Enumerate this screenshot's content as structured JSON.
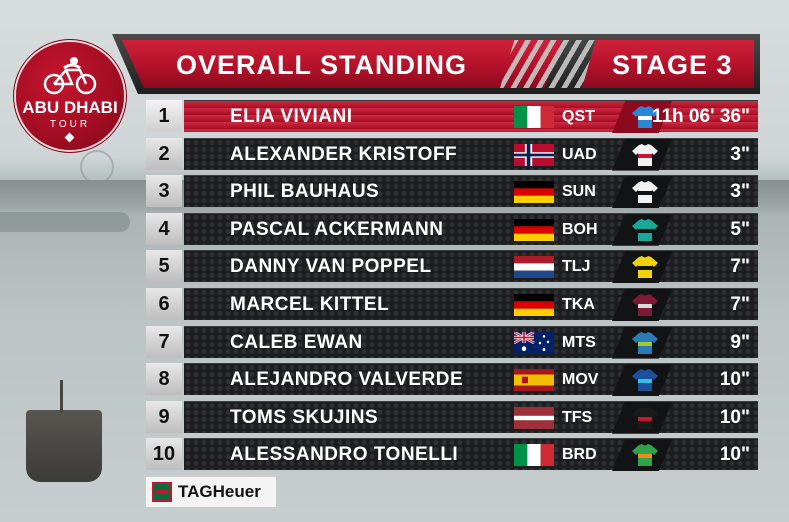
{
  "logo": {
    "line1": "ABU DHABI",
    "line2": "TOUR"
  },
  "header": {
    "title": "OVERALL STANDING",
    "stage": "STAGE 3"
  },
  "standings": [
    {
      "pos": "1",
      "name": "ELIA VIVIANI",
      "flag": "italy",
      "team": "QST",
      "jersey": "blue-white",
      "time": "11h 06' 36\""
    },
    {
      "pos": "2",
      "name": "ALEXANDER KRISTOFF",
      "flag": "norway",
      "team": "UAD",
      "jersey": "white-red",
      "time": "3\""
    },
    {
      "pos": "3",
      "name": "PHIL BAUHAUS",
      "flag": "germany",
      "team": "SUN",
      "jersey": "white-black-red",
      "time": "3\""
    },
    {
      "pos": "4",
      "name": "PASCAL ACKERMANN",
      "flag": "germany",
      "team": "BOH",
      "jersey": "teal-black",
      "time": "5\""
    },
    {
      "pos": "5",
      "name": "DANNY VAN POPPEL",
      "flag": "netherlands",
      "team": "TLJ",
      "jersey": "yellow",
      "time": "7\""
    },
    {
      "pos": "6",
      "name": "MARCEL KITTEL",
      "flag": "germany",
      "team": "TKA",
      "jersey": "maroon",
      "time": "7\""
    },
    {
      "pos": "7",
      "name": "CALEB EWAN",
      "flag": "australia",
      "team": "MTS",
      "jersey": "green-blue",
      "time": "9\""
    },
    {
      "pos": "8",
      "name": "ALEJANDRO VALVERDE",
      "flag": "spain",
      "team": "MOV",
      "jersey": "blue-m",
      "time": "10\""
    },
    {
      "pos": "9",
      "name": "TOMS SKUJINS",
      "flag": "latvia",
      "team": "TFS",
      "jersey": "black-red",
      "time": "10\""
    },
    {
      "pos": "10",
      "name": "ALESSANDRO TONELLI",
      "flag": "italy",
      "team": "BRD",
      "jersey": "green-orange",
      "time": "10\""
    }
  ],
  "sponsor": {
    "name": "TAGHeuer",
    "icon": "tag-heuer-shield-icon"
  }
}
